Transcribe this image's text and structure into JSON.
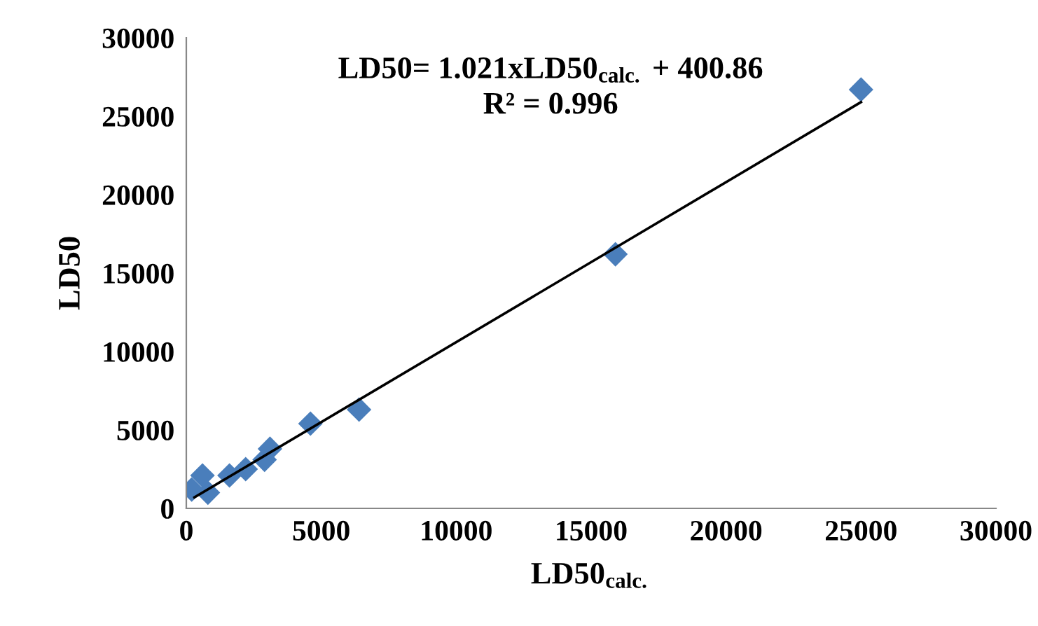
{
  "chart_data": {
    "type": "scatter",
    "xlabel": "LD50$_{calc.}$",
    "ylabel": "LD50",
    "annotations": [
      "LD50= 1.021xLD50$_{calc.}$ + 400.86",
      "R² = 0.996"
    ],
    "series": [
      {
        "type": "scatter",
        "color": "#4a7ebb",
        "marker": "diamond",
        "x": [
          200,
          600,
          800,
          1600,
          2200,
          2900,
          3100,
          4600,
          6400,
          15900,
          25000
        ],
        "values": [
          1200,
          2100,
          1000,
          2100,
          2500,
          3100,
          3800,
          5400,
          6300,
          16200,
          26700
        ]
      },
      {
        "type": "line",
        "color": "#000000",
        "marker": "none",
        "line_style": "solid",
        "x": [
          300,
          25000
        ],
        "values": [
          700,
          25900
        ]
      }
    ],
    "xlim": [
      0,
      30000
    ],
    "xticks": [
      0,
      5000,
      10000,
      15000,
      20000,
      25000,
      30000
    ],
    "ylim": [
      0,
      30000
    ],
    "yticks": [
      0,
      5000,
      10000,
      15000,
      20000,
      25000,
      30000
    ],
    "grid": false,
    "legend": false
  }
}
